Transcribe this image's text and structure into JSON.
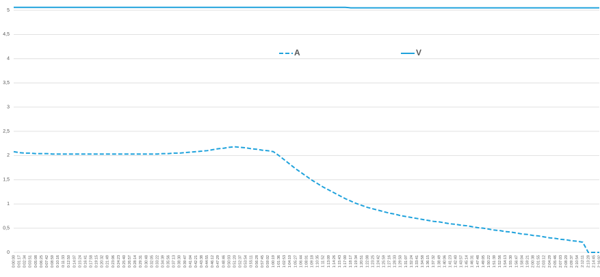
{
  "chart_data": {
    "type": "line",
    "categories": [
      "0:00:00",
      "0:01:17",
      "0:02:34",
      "0:03:51",
      "0:05:08",
      "0:06:25",
      "0:07:42",
      "0:08:59",
      "0:10:16",
      "0:11:33",
      "0:12:50",
      "0:14:07",
      "0:15:24",
      "0:16:41",
      "0:17:58",
      "0:19:15",
      "0:20:32",
      "0:21:49",
      "0:23:06",
      "0:24:23",
      "0:25:40",
      "0:26:57",
      "0:28:14",
      "0:29:31",
      "0:30:48",
      "0:32:05",
      "0:33:22",
      "0:34:39",
      "0:35:56",
      "0:37:13",
      "0:38:30",
      "0:39:47",
      "0:41:04",
      "0:42:21",
      "0:43:38",
      "0:44:55",
      "0:46:12",
      "0:47:29",
      "0:48:46",
      "0:50:03",
      "0:51:20",
      "0:52:37",
      "0:53:54",
      "0:55:11",
      "0:56:28",
      "0:57:45",
      "0:59:02",
      "1:00:19",
      "1:01:36",
      "1:02:53",
      "1:04:10",
      "1:05:27",
      "1:06:44",
      "1:08:01",
      "1:09:18",
      "1:10:35",
      "1:11:52",
      "1:13:09",
      "1:14:26",
      "1:15:43",
      "1:17:00",
      "1:18:17",
      "1:19:34",
      "1:20:51",
      "1:22:08",
      "1:23:25",
      "1:24:42",
      "1:25:59",
      "1:27:16",
      "1:28:33",
      "1:29:50",
      "1:31:07",
      "1:32:24",
      "1:33:41",
      "1:34:58",
      "1:36:15",
      "1:37:32",
      "1:38:49",
      "1:40:06",
      "1:41:23",
      "1:42:40",
      "1:43:57",
      "1:45:14",
      "1:46:31",
      "1:47:48",
      "1:49:05",
      "1:50:22",
      "1:51:39",
      "1:52:56",
      "1:54:13",
      "1:55:30",
      "1:56:47",
      "1:58:04",
      "1:59:21",
      "2:00:38",
      "2:01:55",
      "2:03:12",
      "2:04:29",
      "2:05:46",
      "2:07:03",
      "2:08:20",
      "2:09:37",
      "2:10:54",
      "2:12:11",
      "2:13:28",
      "2:14:45",
      "2:16:02"
    ],
    "series": [
      {
        "name": "A",
        "color": "#1fa2dc",
        "dashed": true,
        "values": [
          2.08,
          2.06,
          2.05,
          2.05,
          2.04,
          2.04,
          2.04,
          2.03,
          2.03,
          2.03,
          2.03,
          2.03,
          2.03,
          2.03,
          2.03,
          2.03,
          2.03,
          2.03,
          2.03,
          2.03,
          2.03,
          2.03,
          2.03,
          2.03,
          2.03,
          2.03,
          2.03,
          2.04,
          2.04,
          2.05,
          2.05,
          2.06,
          2.07,
          2.08,
          2.09,
          2.1,
          2.12,
          2.14,
          2.15,
          2.17,
          2.18,
          2.17,
          2.16,
          2.14,
          2.13,
          2.11,
          2.1,
          2.08,
          2.0,
          1.91,
          1.82,
          1.73,
          1.65,
          1.57,
          1.49,
          1.42,
          1.35,
          1.29,
          1.23,
          1.17,
          1.11,
          1.06,
          1.01,
          0.97,
          0.93,
          0.9,
          0.87,
          0.84,
          0.81,
          0.79,
          0.76,
          0.74,
          0.72,
          0.7,
          0.68,
          0.66,
          0.64,
          0.63,
          0.61,
          0.59,
          0.58,
          0.56,
          0.55,
          0.53,
          0.51,
          0.5,
          0.48,
          0.46,
          0.45,
          0.43,
          0.42,
          0.4,
          0.38,
          0.37,
          0.35,
          0.34,
          0.32,
          0.3,
          0.29,
          0.27,
          0.26,
          0.24,
          0.23,
          0.21,
          0,
          0,
          0
        ]
      },
      {
        "name": "V",
        "color": "#1fa2dc",
        "dashed": false,
        "values": [
          5.06,
          5.06,
          5.06,
          5.06,
          5.06,
          5.06,
          5.06,
          5.06,
          5.06,
          5.06,
          5.06,
          5.06,
          5.06,
          5.06,
          5.06,
          5.06,
          5.06,
          5.06,
          5.06,
          5.06,
          5.06,
          5.06,
          5.06,
          5.06,
          5.06,
          5.06,
          5.06,
          5.06,
          5.06,
          5.06,
          5.06,
          5.06,
          5.06,
          5.06,
          5.06,
          5.06,
          5.06,
          5.06,
          5.06,
          5.06,
          5.06,
          5.06,
          5.06,
          5.06,
          5.06,
          5.06,
          5.06,
          5.06,
          5.06,
          5.06,
          5.06,
          5.06,
          5.06,
          5.06,
          5.06,
          5.06,
          5.06,
          5.06,
          5.06,
          5.06,
          5.06,
          5.05,
          5.05,
          5.05,
          5.05,
          5.05,
          5.05,
          5.05,
          5.05,
          5.05,
          5.05,
          5.05,
          5.05,
          5.05,
          5.05,
          5.05,
          5.05,
          5.05,
          5.05,
          5.05,
          5.05,
          5.05,
          5.05,
          5.05,
          5.05,
          5.05,
          5.05,
          5.05,
          5.05,
          5.05,
          5.05,
          5.05,
          5.05,
          5.05,
          5.05,
          5.05,
          5.05,
          5.05,
          5.05,
          5.05,
          5.05,
          5.05,
          5.05,
          5.05,
          5.05,
          5.05,
          5.05
        ]
      }
    ],
    "ylim": [
      0,
      5
    ],
    "yticks": [
      0,
      {
        "value": 0.5,
        "label": "0,5"
      },
      1,
      {
        "value": 1.5,
        "label": "1,5"
      },
      2,
      {
        "value": 2.5,
        "label": "2,5"
      },
      3,
      {
        "value": 3.5,
        "label": "3,5"
      },
      4,
      {
        "value": 4.5,
        "label": "4,5"
      },
      5
    ],
    "grid": true
  }
}
